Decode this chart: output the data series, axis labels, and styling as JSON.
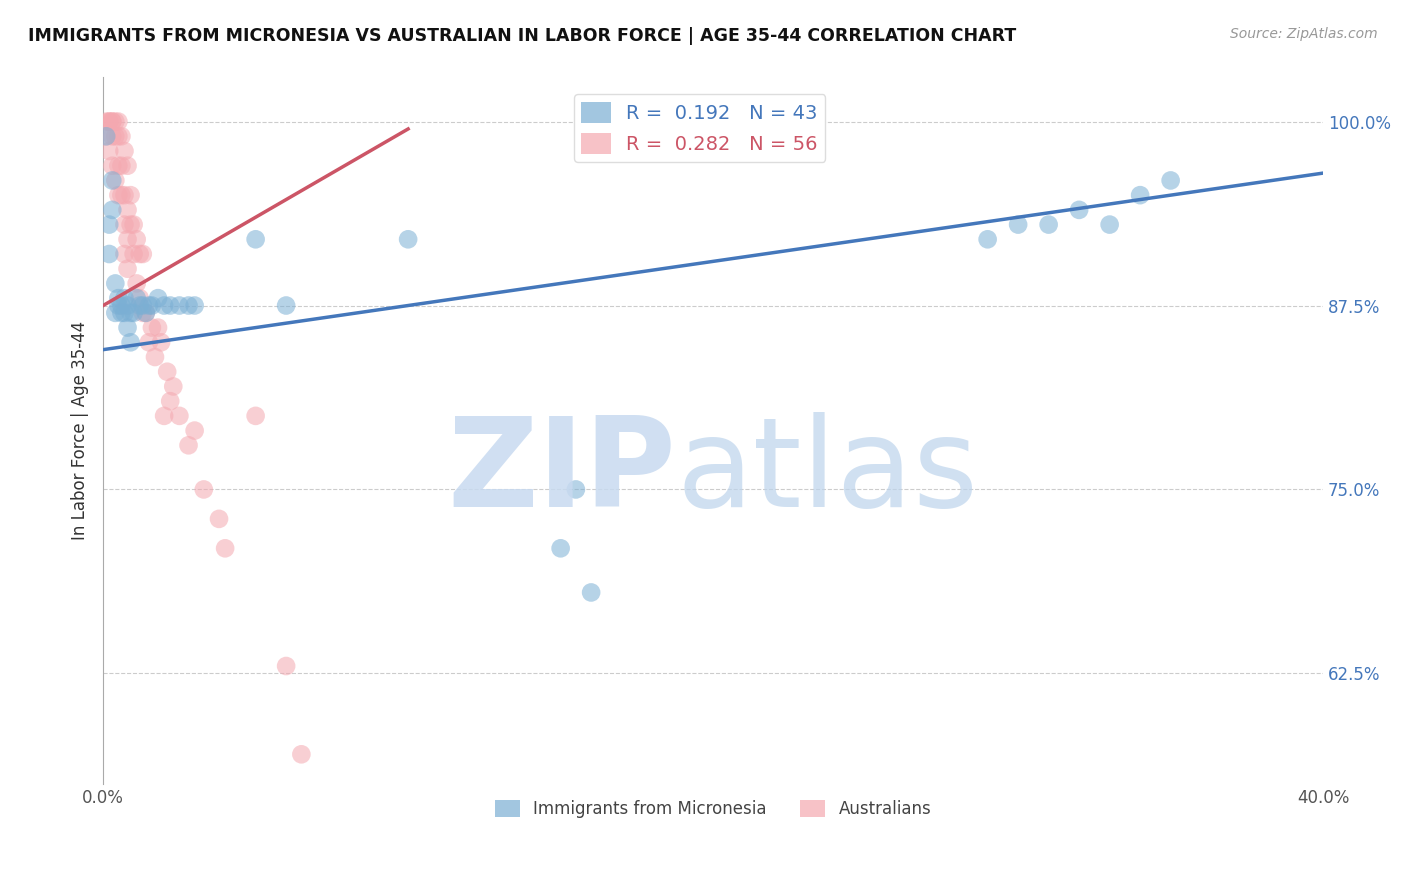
{
  "title": "IMMIGRANTS FROM MICRONESIA VS AUSTRALIAN IN LABOR FORCE | AGE 35-44 CORRELATION CHART",
  "source": "Source: ZipAtlas.com",
  "ylabel": "In Labor Force | Age 35-44",
  "xlim": [
    0.0,
    0.4
  ],
  "ylim": [
    0.55,
    1.03
  ],
  "xticks": [
    0.0,
    0.05,
    0.1,
    0.15,
    0.2,
    0.25,
    0.3,
    0.35,
    0.4
  ],
  "xtick_labels": [
    "0.0%",
    "",
    "",
    "",
    "",
    "",
    "",
    "",
    "40.0%"
  ],
  "yticks": [
    1.0,
    0.875,
    0.75,
    0.625
  ],
  "ytick_labels": [
    "100.0%",
    "87.5%",
    "75.0%",
    "62.5%"
  ],
  "grid_color": "#cccccc",
  "background_color": "#ffffff",
  "blue_color": "#7bafd4",
  "pink_color": "#f4a8b0",
  "blue_line_color": "#4477bb",
  "pink_line_color": "#cc5566",
  "axis_label_color": "#4477bb",
  "legend_R_blue": "0.192",
  "legend_N_blue": "43",
  "legend_R_pink": "0.282",
  "legend_N_pink": "56",
  "legend_label_blue": "Immigrants from Micronesia",
  "legend_label_pink": "Australians",
  "blue_line_x": [
    0.0,
    0.4
  ],
  "blue_line_y": [
    0.845,
    0.965
  ],
  "pink_line_x": [
    0.0,
    0.1
  ],
  "pink_line_y": [
    0.875,
    0.995
  ],
  "blue_scatter_x": [
    0.001,
    0.002,
    0.002,
    0.003,
    0.003,
    0.004,
    0.004,
    0.005,
    0.005,
    0.006,
    0.006,
    0.007,
    0.007,
    0.008,
    0.008,
    0.009,
    0.009,
    0.01,
    0.011,
    0.012,
    0.013,
    0.014,
    0.015,
    0.016,
    0.018,
    0.02,
    0.022,
    0.025,
    0.028,
    0.03,
    0.05,
    0.06,
    0.1,
    0.15,
    0.155,
    0.16,
    0.29,
    0.3,
    0.31,
    0.32,
    0.33,
    0.34,
    0.35
  ],
  "blue_scatter_y": [
    0.99,
    0.91,
    0.93,
    0.94,
    0.96,
    0.87,
    0.89,
    0.88,
    0.875,
    0.87,
    0.875,
    0.87,
    0.88,
    0.86,
    0.875,
    0.87,
    0.85,
    0.87,
    0.88,
    0.875,
    0.875,
    0.87,
    0.875,
    0.875,
    0.88,
    0.875,
    0.875,
    0.875,
    0.875,
    0.875,
    0.92,
    0.875,
    0.92,
    0.71,
    0.75,
    0.68,
    0.92,
    0.93,
    0.93,
    0.94,
    0.93,
    0.95,
    0.96
  ],
  "pink_scatter_x": [
    0.001,
    0.001,
    0.002,
    0.002,
    0.002,
    0.003,
    0.003,
    0.003,
    0.003,
    0.004,
    0.004,
    0.004,
    0.005,
    0.005,
    0.005,
    0.005,
    0.006,
    0.006,
    0.006,
    0.007,
    0.007,
    0.007,
    0.007,
    0.008,
    0.008,
    0.008,
    0.008,
    0.009,
    0.009,
    0.01,
    0.01,
    0.011,
    0.011,
    0.012,
    0.012,
    0.013,
    0.013,
    0.014,
    0.015,
    0.016,
    0.017,
    0.018,
    0.019,
    0.02,
    0.021,
    0.022,
    0.023,
    0.025,
    0.028,
    0.03,
    0.033,
    0.038,
    0.04,
    0.05,
    0.06,
    0.065
  ],
  "pink_scatter_y": [
    1.0,
    0.99,
    1.0,
    1.0,
    0.98,
    1.0,
    1.0,
    0.99,
    0.97,
    1.0,
    0.99,
    0.96,
    1.0,
    0.99,
    0.97,
    0.95,
    0.99,
    0.97,
    0.95,
    0.98,
    0.95,
    0.93,
    0.91,
    0.97,
    0.94,
    0.92,
    0.9,
    0.95,
    0.93,
    0.93,
    0.91,
    0.92,
    0.89,
    0.91,
    0.88,
    0.91,
    0.87,
    0.87,
    0.85,
    0.86,
    0.84,
    0.86,
    0.85,
    0.8,
    0.83,
    0.81,
    0.82,
    0.8,
    0.78,
    0.79,
    0.75,
    0.73,
    0.71,
    0.8,
    0.63,
    0.57
  ]
}
